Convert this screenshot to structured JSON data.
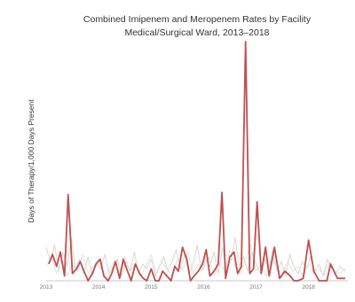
{
  "chart_data": {
    "type": "line",
    "title": "Combined Imipenem and Meropenem Rates by Facility",
    "subtitle": "Medical/Surgical Ward, 2013–2018",
    "xlabel": "",
    "ylabel": "Days of Therapy/1,000 Days Present",
    "xlim": [
      2013.0,
      2018.75
    ],
    "ylim": [
      0,
      100
    ],
    "grid": false,
    "xticks": [
      "2013",
      "2014",
      "2015",
      "2016",
      "2017",
      "2018"
    ],
    "series": [
      {
        "color": "#bf5050",
        "x": [
          2013.05,
          2013.12,
          2013.2,
          2013.27,
          2013.35,
          2013.42,
          2013.5,
          2013.58,
          2013.65,
          2013.72,
          2013.8,
          2013.88,
          2013.95,
          2014.03,
          2014.1,
          2014.18,
          2014.25,
          2014.32,
          2014.4,
          2014.47,
          2014.55,
          2014.62,
          2014.7,
          2014.78,
          2014.85,
          2014.92,
          2015.0,
          2015.08,
          2015.15,
          2015.22,
          2015.3,
          2015.38,
          2015.45,
          2015.52,
          2015.6,
          2015.68,
          2015.75,
          2015.82,
          2015.9,
          2015.98,
          2016.05,
          2016.12,
          2016.2,
          2016.28,
          2016.35,
          2016.42,
          2016.5,
          2016.58,
          2016.65,
          2016.72,
          2016.8,
          2016.88,
          2016.95,
          2017.02,
          2017.1,
          2017.18,
          2017.25,
          2017.35,
          2017.45,
          2017.55,
          2017.65,
          2017.72,
          2017.8,
          2017.9,
          2018.0,
          2018.1,
          2018.2,
          2018.28,
          2018.35,
          2018.42,
          2018.55,
          2018.7
        ],
        "values": [
          7,
          11,
          6,
          12,
          2,
          36,
          3,
          5,
          8,
          4,
          0,
          3,
          7,
          9,
          2,
          0,
          3,
          8,
          1,
          9,
          4,
          0,
          7,
          3,
          1,
          0,
          5,
          0,
          0,
          4,
          2,
          0,
          6,
          4,
          14,
          9,
          0,
          2,
          4,
          7,
          13,
          2,
          4,
          7,
          37,
          1,
          10,
          12,
          3,
          6,
          100,
          3,
          5,
          33,
          3,
          14,
          2,
          14,
          1,
          4,
          2,
          0,
          0,
          1,
          17,
          4,
          0,
          0,
          0,
          7,
          1,
          1
        ]
      },
      {
        "color": "#d8dcd6",
        "x": [
          2013.0,
          2013.08,
          2013.16,
          2013.24,
          2013.32,
          2013.4,
          2013.48,
          2013.56,
          2013.64,
          2013.72,
          2013.8,
          2013.88,
          2013.96,
          2014.04,
          2014.12,
          2014.2,
          2014.28,
          2014.36,
          2014.44,
          2014.52,
          2014.6,
          2014.68,
          2014.76,
          2014.84,
          2014.92,
          2015.0,
          2015.08,
          2015.16,
          2015.24,
          2015.32,
          2015.4,
          2015.48,
          2015.56,
          2015.64,
          2015.72,
          2015.8,
          2015.88,
          2015.96,
          2016.04,
          2016.12,
          2016.2,
          2016.28,
          2016.36,
          2016.44,
          2016.52,
          2016.6,
          2016.68,
          2016.76,
          2016.84,
          2016.92,
          2017.0,
          2017.08,
          2017.16,
          2017.24,
          2017.32,
          2017.4,
          2017.48,
          2017.56,
          2017.64,
          2017.72,
          2017.8,
          2017.88,
          2017.96,
          2018.04,
          2018.12,
          2018.2,
          2018.28,
          2018.36,
          2018.44,
          2018.52,
          2018.6,
          2018.7
        ],
        "values": [
          14,
          8,
          15,
          4,
          12,
          6,
          18,
          5,
          9,
          3,
          10,
          2,
          7,
          5,
          11,
          3,
          6,
          9,
          2,
          8,
          4,
          12,
          3,
          7,
          5,
          9,
          2,
          6,
          10,
          4,
          8,
          13,
          5,
          11,
          3,
          7,
          15,
          4,
          9,
          6,
          12,
          3,
          14,
          5,
          8,
          18,
          6,
          10,
          4,
          12,
          7,
          3,
          9,
          5,
          13,
          4,
          8,
          2,
          11,
          6,
          3,
          8,
          5,
          10,
          4,
          7,
          2,
          9,
          5,
          3,
          6,
          4
        ]
      },
      {
        "color": "#e2e6e0",
        "x": [
          2013.0,
          2013.1,
          2013.2,
          2013.3,
          2013.4,
          2013.5,
          2013.6,
          2013.7,
          2013.8,
          2013.9,
          2014.0,
          2014.1,
          2014.2,
          2014.3,
          2014.4,
          2014.5,
          2014.6,
          2014.7,
          2014.8,
          2014.9,
          2015.0,
          2015.1,
          2015.2,
          2015.3,
          2015.4,
          2015.5,
          2015.6,
          2015.7,
          2015.8,
          2015.9,
          2016.0,
          2016.1,
          2016.2,
          2016.3,
          2016.4,
          2016.5,
          2016.6,
          2016.7,
          2016.8,
          2016.9,
          2017.0,
          2017.1,
          2017.2,
          2017.3,
          2017.4,
          2017.5,
          2017.6,
          2017.7,
          2017.8,
          2017.9,
          2018.0,
          2018.1,
          2018.2,
          2018.3,
          2018.4,
          2018.5,
          2018.6,
          2018.7
        ],
        "values": [
          6,
          10,
          3,
          9,
          2,
          7,
          4,
          11,
          3,
          6,
          9,
          2,
          5,
          8,
          3,
          10,
          4,
          7,
          2,
          6,
          11,
          3,
          8,
          5,
          2,
          9,
          4,
          12,
          3,
          7,
          5,
          10,
          2,
          8,
          4,
          13,
          6,
          3,
          9,
          15,
          4,
          7,
          2,
          10,
          5,
          3,
          8,
          4,
          6,
          2,
          7,
          3,
          5,
          2,
          8,
          4,
          3,
          5
        ]
      }
    ]
  }
}
